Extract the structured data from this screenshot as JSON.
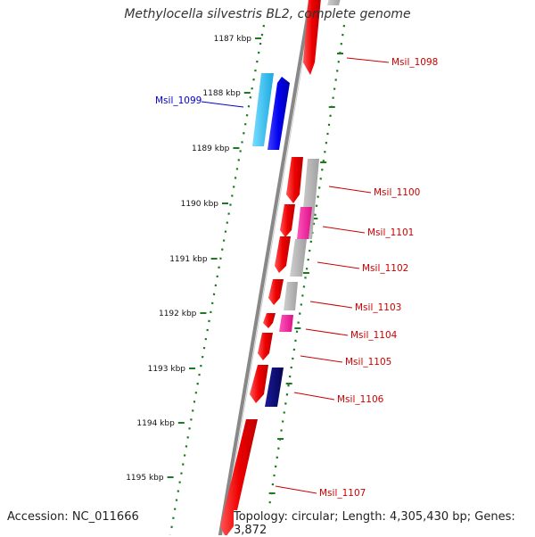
{
  "title": "Methylocella silvestris BL2, complete genome",
  "footer": {
    "accession": "Accession: NC_011666",
    "topology": "Topology: circular; Length: 4,305,430 bp; Genes: 3,872"
  },
  "colors": {
    "backbone": "#888888",
    "tick": "#1e7a1e",
    "plus_strand": "#0000ee",
    "plus_light": "#33bbee",
    "minus_strand": "#ee0000",
    "minus_light": "#aaaaaa",
    "minus_pink": "#ee3399",
    "dark_navy": "#0a0a70",
    "label_red": "#cc0000",
    "label_blue": "#0000cc"
  },
  "scale_labels": [
    "1187 kbp",
    "1188 kbp",
    "1189 kbp",
    "1190 kbp",
    "1191 kbp",
    "1192 kbp",
    "1193 kbp",
    "1194 kbp",
    "1195 kbp"
  ],
  "genes": [
    {
      "label": "Msil_1098",
      "strand": "-",
      "color": "red"
    },
    {
      "label": "Msil_1099",
      "strand": "+",
      "color": "blue"
    },
    {
      "label": "Msil_1100",
      "strand": "-",
      "color": "red"
    },
    {
      "label": "Msil_1101",
      "strand": "-",
      "color": "red"
    },
    {
      "label": "Msil_1102",
      "strand": "-",
      "color": "red"
    },
    {
      "label": "Msil_1103",
      "strand": "-",
      "color": "red"
    },
    {
      "label": "Msil_1104",
      "strand": "-",
      "color": "red"
    },
    {
      "label": "Msil_1105",
      "strand": "-",
      "color": "red"
    },
    {
      "label": "Msil_1106",
      "strand": "-",
      "color": "red"
    },
    {
      "label": "Msil_1107",
      "strand": "-",
      "color": "red"
    }
  ]
}
